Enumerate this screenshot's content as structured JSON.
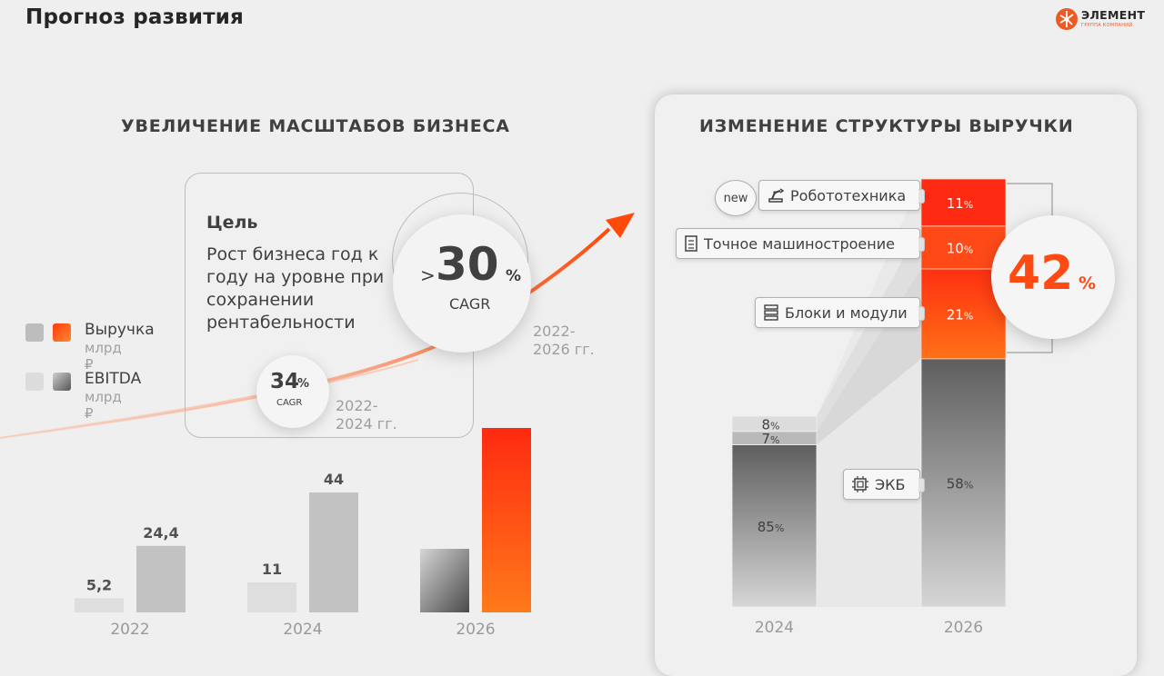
{
  "title": "Прогноз развития",
  "logo": {
    "name": "ЭЛЕМЕНТ",
    "sub": "ГРУППА КОМПАНИЙ"
  },
  "left": {
    "heading": "УВЕЛИЧЕНИЕ МАСШТАБОВ БИЗНЕСА",
    "goal_title": "Цель",
    "goal_text": "Рост бизнеса год к году на уровне при сохранении рентабельности",
    "big_cagr": {
      "prefix": ">",
      "value": "30",
      "unit": "%",
      "label": "CAGR",
      "period": "2022-\n2026 гг."
    },
    "small_cagr": {
      "value": "34",
      "unit": "%",
      "label": "CAGR",
      "period": "2022-\n2024 гг."
    }
  },
  "legend": [
    {
      "label": "Выручка",
      "unit": "млрд ₽",
      "colors": [
        "#bdbdbd",
        "#ff5a14"
      ]
    },
    {
      "label": "EBITDA",
      "unit": "млрд ₽",
      "colors": [
        "#dcdcdc",
        "#6e6e6e"
      ]
    }
  ],
  "right": {
    "heading": "ИЗМЕНЕНИЕ СТРУКТУРЫ ВЫРУЧКИ",
    "new_badge": "new",
    "labels": {
      "robot": "Робототехника",
      "machine": "Точное машиностроение",
      "blocks": "Блоки и модули",
      "ekb": "ЭКБ"
    },
    "total_new": {
      "value": "42",
      "unit": "%"
    }
  },
  "chart_data": [
    {
      "type": "bar",
      "categories": [
        "2022",
        "2024",
        "2026"
      ],
      "series": [
        {
          "name": "EBITDA",
          "values": [
            5.2,
            11,
            null
          ],
          "labels": [
            "5,2",
            "11",
            ""
          ]
        },
        {
          "name": "Выручка",
          "values": [
            24.4,
            44,
            null
          ],
          "labels": [
            "24,4",
            "44",
            ""
          ]
        }
      ]
    },
    {
      "type": "bar",
      "stacked": true,
      "unit": "%",
      "categories": [
        "2024",
        "2026"
      ],
      "series": [
        {
          "name": "ЭКБ",
          "values": [
            85,
            58
          ]
        },
        {
          "name": "Блоки и модули",
          "values": [
            7,
            21
          ]
        },
        {
          "name": "Точное машиностроение",
          "values": [
            8,
            10
          ]
        },
        {
          "name": "Робототехника",
          "values": [
            0,
            11
          ]
        }
      ]
    }
  ]
}
